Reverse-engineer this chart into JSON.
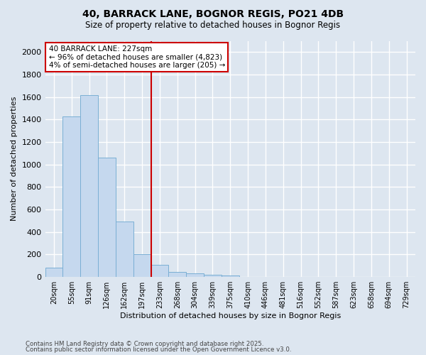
{
  "title1": "40, BARRACK LANE, BOGNOR REGIS, PO21 4DB",
  "title2": "Size of property relative to detached houses in Bognor Regis",
  "xlabel": "Distribution of detached houses by size in Bognor Regis",
  "ylabel": "Number of detached properties",
  "categories": [
    "20sqm",
    "55sqm",
    "91sqm",
    "126sqm",
    "162sqm",
    "197sqm",
    "233sqm",
    "268sqm",
    "304sqm",
    "339sqm",
    "375sqm",
    "410sqm",
    "446sqm",
    "481sqm",
    "516sqm",
    "552sqm",
    "587sqm",
    "623sqm",
    "658sqm",
    "694sqm",
    "729sqm"
  ],
  "values": [
    80,
    1430,
    1620,
    1060,
    490,
    205,
    110,
    42,
    30,
    20,
    10,
    0,
    0,
    0,
    0,
    0,
    0,
    0,
    0,
    0,
    0
  ],
  "bar_color": "#c5d8ee",
  "bar_edge_color": "#7aafd4",
  "vline_x": 5.5,
  "vline_color": "#cc0000",
  "annotation_title": "40 BARRACK LANE: 227sqm",
  "annotation_line1": "← 96% of detached houses are smaller (4,823)",
  "annotation_line2": "4% of semi-detached houses are larger (205) →",
  "annotation_box_color": "white",
  "annotation_box_edge": "#cc0000",
  "bg_color": "#dde6f0",
  "grid_color": "white",
  "ylim": [
    0,
    2100
  ],
  "yticks": [
    0,
    200,
    400,
    600,
    800,
    1000,
    1200,
    1400,
    1600,
    1800,
    2000
  ],
  "footer1": "Contains HM Land Registry data © Crown copyright and database right 2025.",
  "footer2": "Contains public sector information licensed under the Open Government Licence v3.0."
}
